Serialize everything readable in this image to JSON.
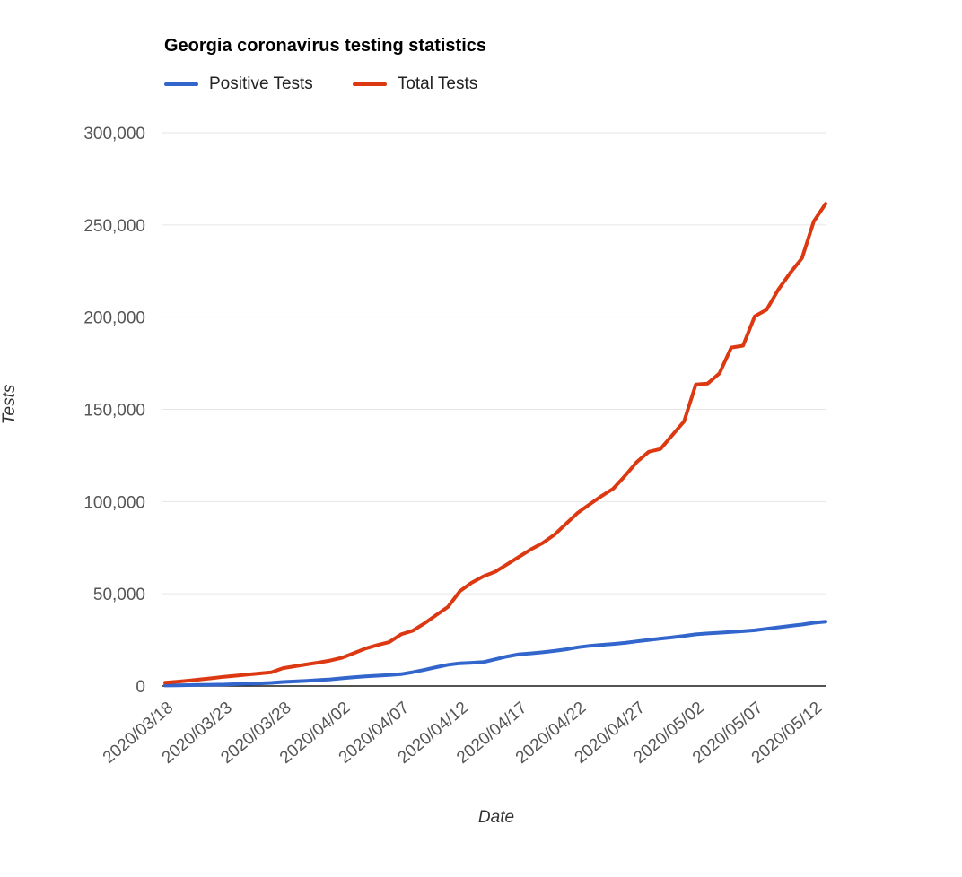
{
  "chart": {
    "title": "Georgia coronavirus testing statistics",
    "xlabel": "Date",
    "ylabel": "Tests"
  },
  "legend": {
    "items": [
      {
        "label": "Positive Tests",
        "color": "#3366cc"
      },
      {
        "label": "Total Tests",
        "color": "#dc3912"
      }
    ]
  },
  "chart_data": {
    "type": "line",
    "title": "Georgia coronavirus testing statistics",
    "xlabel": "Date",
    "ylabel": "Tests",
    "ylim": [
      0,
      300000
    ],
    "grid": true,
    "legend_position": "top",
    "grid_color": "#e6e6e6",
    "axis_line_color": "#1a1a1a",
    "tick_label_color": "#555555",
    "y_tick_values": [
      0,
      50000,
      100000,
      150000,
      200000,
      250000,
      300000
    ],
    "y_tick_labels": [
      "0",
      "50,000",
      "100,000",
      "150,000",
      "200,000",
      "250,000",
      "300,000"
    ],
    "x_tick_step": 5,
    "x_tick_labels": [
      "2020/03/18",
      "2020/03/23",
      "2020/03/28",
      "2020/04/02",
      "2020/04/07",
      "2020/04/12",
      "2020/04/17",
      "2020/04/22",
      "2020/04/27",
      "2020/05/02",
      "2020/05/07",
      "2020/05/12"
    ],
    "x": [
      "2020/03/18",
      "2020/03/19",
      "2020/03/20",
      "2020/03/21",
      "2020/03/22",
      "2020/03/23",
      "2020/03/24",
      "2020/03/25",
      "2020/03/26",
      "2020/03/27",
      "2020/03/28",
      "2020/03/29",
      "2020/03/30",
      "2020/03/31",
      "2020/04/01",
      "2020/04/02",
      "2020/04/03",
      "2020/04/04",
      "2020/04/05",
      "2020/04/06",
      "2020/04/07",
      "2020/04/08",
      "2020/04/09",
      "2020/04/10",
      "2020/04/11",
      "2020/04/12",
      "2020/04/13",
      "2020/04/14",
      "2020/04/15",
      "2020/04/16",
      "2020/04/17",
      "2020/04/18",
      "2020/04/19",
      "2020/04/20",
      "2020/04/21",
      "2020/04/22",
      "2020/04/23",
      "2020/04/24",
      "2020/04/25",
      "2020/04/26",
      "2020/04/27",
      "2020/04/28",
      "2020/04/29",
      "2020/04/30",
      "2020/05/01",
      "2020/05/02",
      "2020/05/03",
      "2020/05/04",
      "2020/05/05",
      "2020/05/06",
      "2020/05/07",
      "2020/05/08",
      "2020/05/09",
      "2020/05/10",
      "2020/05/11",
      "2020/05/12",
      "2020/05/13"
    ],
    "series": [
      {
        "name": "Positive Tests",
        "color": "#3366cc",
        "values": [
          300,
          400,
          500,
          600,
          700,
          800,
          1000,
          1200,
          1400,
          1700,
          2200,
          2500,
          2800,
          3200,
          3600,
          4200,
          4700,
          5200,
          5600,
          6000,
          6400,
          7500,
          8800,
          10200,
          11500,
          12300,
          12600,
          13000,
          14500,
          16000,
          17200,
          17700,
          18300,
          19000,
          19900,
          21000,
          21800,
          22300,
          22800,
          23400,
          24200,
          25000,
          25700,
          26400,
          27200,
          28000,
          28500,
          28900,
          29300,
          29700,
          30200,
          31000,
          31800,
          32600,
          33300,
          34300,
          34900
        ]
      },
      {
        "name": "Total Tests",
        "color": "#dc3912",
        "values": [
          1800,
          2300,
          2900,
          3600,
          4300,
          5000,
          5600,
          6200,
          6800,
          7400,
          9700,
          10700,
          11700,
          12700,
          13800,
          15300,
          17800,
          20300,
          22200,
          23800,
          28000,
          30000,
          34000,
          38500,
          43000,
          51500,
          56000,
          59500,
          62000,
          66000,
          70000,
          74000,
          77500,
          82000,
          88000,
          94000,
          98500,
          103000,
          107000,
          114000,
          121500,
          127000,
          128500,
          136000,
          143500,
          163500,
          164000,
          169500,
          183500,
          184500,
          200500,
          204000,
          215000,
          224000,
          232000,
          252000,
          261500
        ]
      }
    ]
  }
}
